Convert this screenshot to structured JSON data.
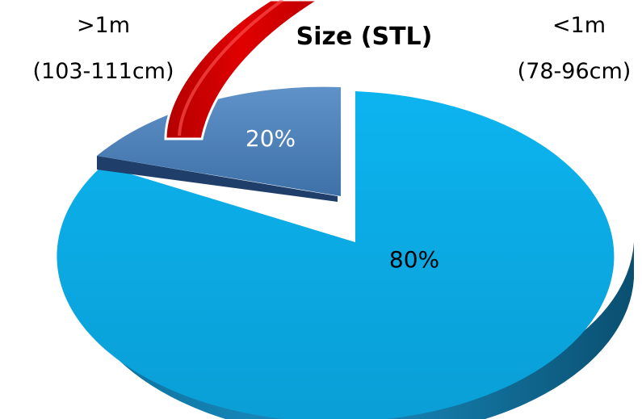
{
  "chart_data": {
    "type": "pie",
    "title": "Size (STL)",
    "slices": [
      {
        "label": "20%",
        "value": 20,
        "color": "#4a7fb8"
      },
      {
        "label": "80%",
        "value": 80,
        "color": "#0aa7e2"
      }
    ],
    "category_labels": [
      {
        "line1": ">1m",
        "line2": "(103-111cm)"
      },
      {
        "line1": "<1m",
        "line2": "(78-96cm)"
      }
    ],
    "legend": "none",
    "style": "3d-exploded",
    "arrow_color": "#cc0000"
  }
}
